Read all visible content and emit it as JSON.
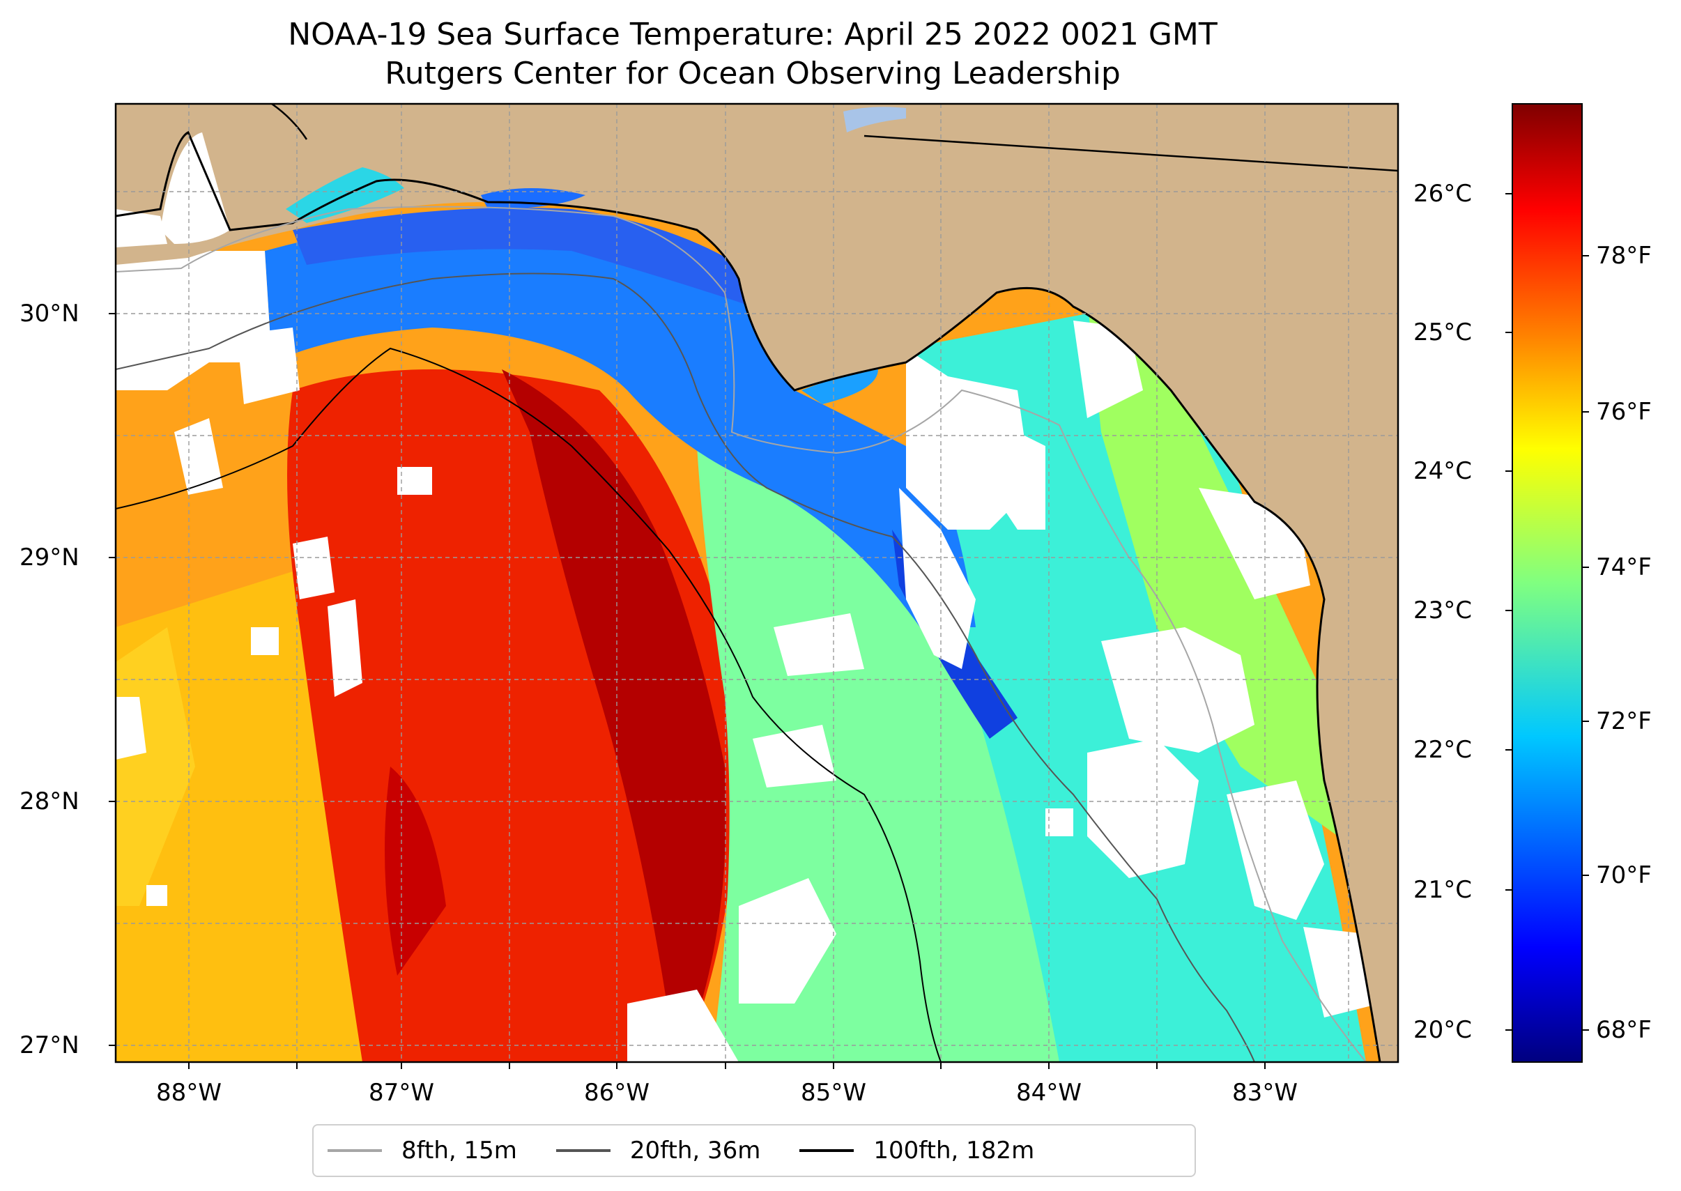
{
  "title": {
    "line1": "NOAA-19 Sea Surface Temperature: April 25 2022 0021 GMT",
    "line2": "Rutgers Center for Ocean Observing Leadership"
  },
  "map": {
    "latitude_labels": [
      "30°N",
      "29°N",
      "28°N",
      "27°N"
    ],
    "longitude_labels": [
      "88°W",
      "87°W",
      "86°W",
      "85°W",
      "84°W",
      "83°W"
    ],
    "land_color": "#d2b48c",
    "missing_data_color": "#ffffff",
    "gridlines": "dashed"
  },
  "colorbar": {
    "celsius_labels": [
      "26°C",
      "25°C",
      "24°C",
      "23°C",
      "22°C",
      "21°C",
      "20°C"
    ],
    "fahrenheit_labels": [
      "78°F",
      "76°F",
      "74°F",
      "72°F",
      "70°F",
      "68°F"
    ],
    "colormap": "jet",
    "stops": [
      "#00007f",
      "#0000ff",
      "#0080ff",
      "#00ffff",
      "#80ff80",
      "#ffff00",
      "#ff8000",
      "#ff0000",
      "#7f0000"
    ]
  },
  "legend": {
    "items": [
      {
        "label": "8fth, 15m",
        "color": "#a6a6a6"
      },
      {
        "label": "20fth, 36m",
        "color": "#555555"
      },
      {
        "label": "100fth, 182m",
        "color": "#000000"
      }
    ]
  }
}
